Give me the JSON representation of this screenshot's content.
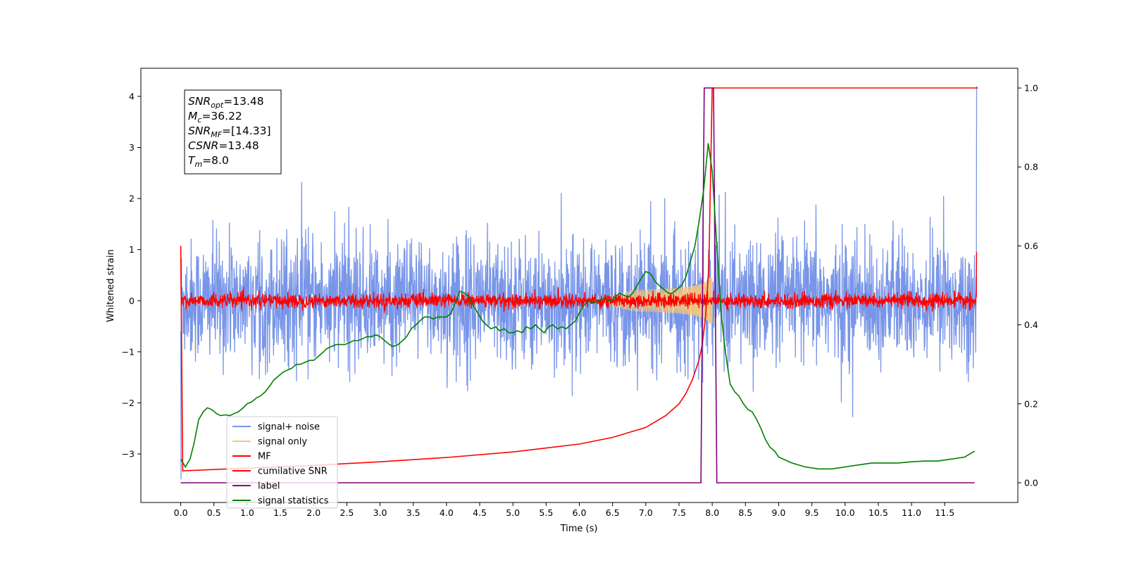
{
  "chart_data": {
    "type": "line",
    "xlabel": "Time (s)",
    "ylabel": "Whitened strain",
    "xlim": [
      -0.6,
      12.6
    ],
    "ylim_left": [
      -3.95,
      4.55
    ],
    "ylim_right": [
      -0.05,
      1.05
    ],
    "x_ticks": [
      "0.0",
      "0.5",
      "1.0",
      "1.5",
      "2.0",
      "2.5",
      "3.0",
      "3.5",
      "4.0",
      "4.5",
      "5.0",
      "5.5",
      "6.0",
      "6.5",
      "7.0",
      "7.5",
      "8.0",
      "8.5",
      "9.0",
      "9.5",
      "10.0",
      "10.5",
      "11.0",
      "11.5"
    ],
    "y_ticks_left": [
      "−3",
      "−2",
      "−1",
      "0",
      "1",
      "2",
      "3",
      "4"
    ],
    "y_ticks_right": [
      "0.0",
      "0.2",
      "0.4",
      "0.6",
      "0.8",
      "1.0"
    ],
    "grid": false,
    "legend_position": "lower-left",
    "annotation": {
      "lines": [
        {
          "var": "SNR",
          "sub": "opt",
          "rest": "=13.48"
        },
        {
          "var": "M",
          "sub": "c",
          "rest": "=36.22"
        },
        {
          "var": "SNR",
          "sub": "MF",
          "rest": "=[14.33]"
        },
        {
          "var": "CSNR",
          "sub": "",
          "rest": "=13.48"
        },
        {
          "var": "T",
          "sub": "m",
          "rest": "=8.0"
        }
      ]
    },
    "series": [
      {
        "name": "signal+ noise",
        "color": "#7895e8",
        "axis": "left",
        "description_values": {
          "mean": 0,
          "std": 0.6,
          "peak_min": -3.5,
          "peak_max": 4.2
        }
      },
      {
        "name": "signal only",
        "color": "#f5c87a",
        "axis": "left",
        "chirp": {
          "start": 6.2,
          "merger": 8.0,
          "max_amplitude": 0.45
        }
      },
      {
        "name": "MF",
        "color": "#ff0000",
        "axis": "left",
        "description_values": {
          "mean": 0,
          "std": 0.07
        }
      },
      {
        "name": "cumilative SNR",
        "color": "#ff0000",
        "axis": "right",
        "x": [
          0,
          0.03,
          1,
          2,
          3,
          4,
          5,
          6,
          6.5,
          7,
          7.3,
          7.5,
          7.6,
          7.7,
          7.8,
          7.85,
          7.9,
          7.95,
          8.0,
          12.0
        ],
        "y": [
          0.6,
          0.03,
          0.037,
          0.044,
          0.053,
          0.064,
          0.078,
          0.098,
          0.115,
          0.14,
          0.17,
          0.2,
          0.225,
          0.26,
          0.31,
          0.35,
          0.42,
          0.55,
          1.0,
          1.0
        ]
      },
      {
        "name": "label",
        "color": "#800080",
        "axis": "right",
        "x": [
          0,
          7.83,
          7.88,
          8.02,
          8.07,
          11.95
        ],
        "y": [
          0,
          0,
          1,
          1,
          0,
          0
        ]
      },
      {
        "name": "signal statistics",
        "color": "#008000",
        "axis": "right",
        "x": [
          0.0,
          0.07,
          0.14,
          0.2,
          0.27,
          0.34,
          0.4,
          0.47,
          0.54,
          0.6,
          0.67,
          0.74,
          0.8,
          0.87,
          0.94,
          1.0,
          1.07,
          1.14,
          1.2,
          1.27,
          1.34,
          1.4,
          1.47,
          1.54,
          1.6,
          1.67,
          1.74,
          1.8,
          1.87,
          1.94,
          2.0,
          2.07,
          2.14,
          2.2,
          2.27,
          2.34,
          2.4,
          2.47,
          2.54,
          2.6,
          2.67,
          2.74,
          2.8,
          2.87,
          2.94,
          3.0,
          3.07,
          3.14,
          3.2,
          3.27,
          3.34,
          3.4,
          3.47,
          3.54,
          3.6,
          3.67,
          3.74,
          3.8,
          3.87,
          3.94,
          4.0,
          4.07,
          4.14,
          4.2,
          4.27,
          4.34,
          4.4,
          4.47,
          4.54,
          4.6,
          4.67,
          4.74,
          4.8,
          4.87,
          4.94,
          5.0,
          5.07,
          5.14,
          5.2,
          5.27,
          5.34,
          5.4,
          5.47,
          5.54,
          5.6,
          5.67,
          5.74,
          5.8,
          5.87,
          5.94,
          6.0,
          6.07,
          6.14,
          6.2,
          6.27,
          6.34,
          6.4,
          6.47,
          6.54,
          6.6,
          6.67,
          6.74,
          6.8,
          6.87,
          6.94,
          7.0,
          7.07,
          7.14,
          7.2,
          7.27,
          7.34,
          7.4,
          7.47,
          7.54,
          7.6,
          7.67,
          7.74,
          7.8,
          7.87,
          7.94,
          8.0,
          8.07,
          8.14,
          8.2,
          8.27,
          8.34,
          8.4,
          8.47,
          8.54,
          8.6,
          8.67,
          8.74,
          8.8,
          8.87,
          8.94,
          9.0,
          9.2,
          9.4,
          9.6,
          9.8,
          10.0,
          10.2,
          10.4,
          10.6,
          10.8,
          11.0,
          11.2,
          11.4,
          11.6,
          11.8,
          11.95
        ],
        "y": [
          0.06,
          0.04,
          0.06,
          0.1,
          0.16,
          0.18,
          0.19,
          0.185,
          0.175,
          0.17,
          0.172,
          0.17,
          0.175,
          0.18,
          0.19,
          0.2,
          0.205,
          0.215,
          0.22,
          0.23,
          0.245,
          0.26,
          0.27,
          0.28,
          0.285,
          0.29,
          0.3,
          0.3,
          0.305,
          0.31,
          0.31,
          0.32,
          0.33,
          0.34,
          0.345,
          0.35,
          0.35,
          0.35,
          0.355,
          0.36,
          0.36,
          0.365,
          0.37,
          0.37,
          0.375,
          0.37,
          0.36,
          0.35,
          0.345,
          0.35,
          0.36,
          0.37,
          0.39,
          0.4,
          0.41,
          0.42,
          0.42,
          0.415,
          0.42,
          0.42,
          0.42,
          0.43,
          0.46,
          0.485,
          0.48,
          0.47,
          0.45,
          0.43,
          0.41,
          0.4,
          0.39,
          0.395,
          0.385,
          0.39,
          0.38,
          0.38,
          0.385,
          0.38,
          0.395,
          0.39,
          0.4,
          0.39,
          0.38,
          0.395,
          0.4,
          0.39,
          0.395,
          0.39,
          0.4,
          0.41,
          0.43,
          0.45,
          0.46,
          0.455,
          0.46,
          0.465,
          0.465,
          0.46,
          0.47,
          0.48,
          0.475,
          0.47,
          0.48,
          0.5,
          0.52,
          0.535,
          0.53,
          0.51,
          0.5,
          0.49,
          0.48,
          0.48,
          0.49,
          0.5,
          0.52,
          0.56,
          0.6,
          0.66,
          0.74,
          0.86,
          0.79,
          0.6,
          0.42,
          0.33,
          0.25,
          0.23,
          0.22,
          0.2,
          0.185,
          0.18,
          0.16,
          0.135,
          0.11,
          0.09,
          0.08,
          0.065,
          0.05,
          0.04,
          0.035,
          0.035,
          0.04,
          0.045,
          0.05,
          0.05,
          0.05,
          0.053,
          0.055,
          0.055,
          0.06,
          0.065,
          0.08
        ]
      }
    ]
  }
}
